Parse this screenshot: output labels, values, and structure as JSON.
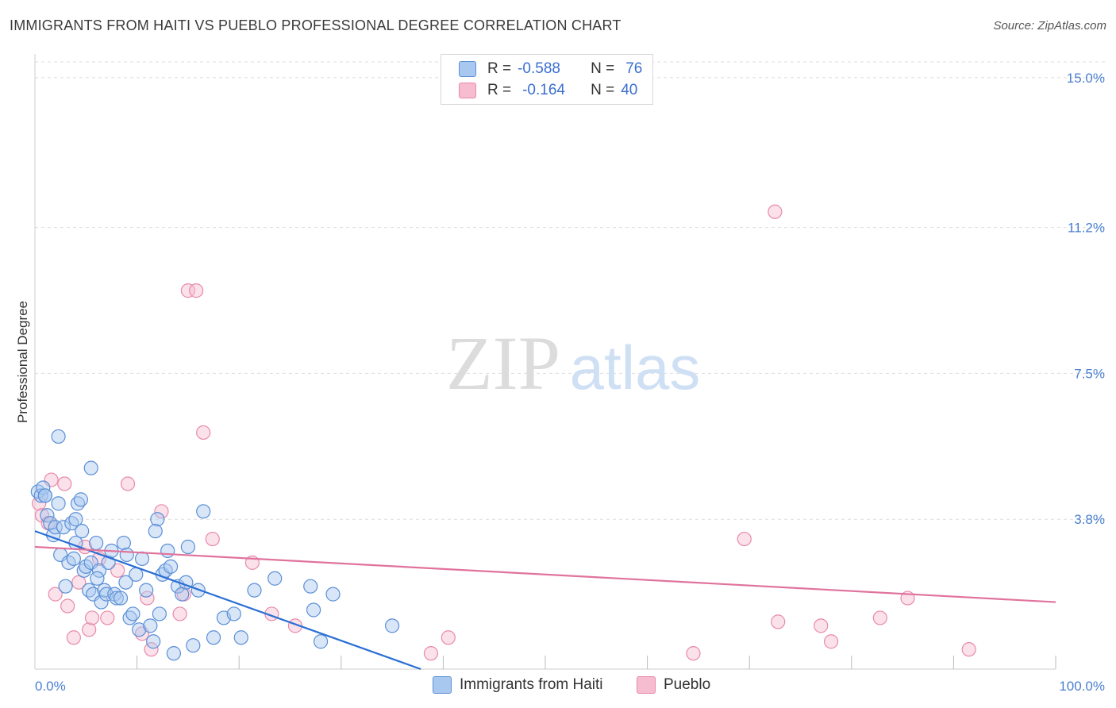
{
  "title": "IMMIGRANTS FROM HAITI VS PUEBLO PROFESSIONAL DEGREE CORRELATION CHART",
  "source": "Source: ZipAtlas.com",
  "watermark": {
    "zip": "ZIP",
    "atlas": "atlas"
  },
  "colors": {
    "blue_fill": "#a9c8f0",
    "blue_stroke": "#5b8fd6",
    "blue_line": "#2a6fd4",
    "pink_fill": "#f6bcd0",
    "pink_stroke": "#e88aaa",
    "pink_line": "#e0739c",
    "axis_text": "#4a7fd0",
    "grid": "#dddddd"
  },
  "legend": {
    "rows": [
      {
        "r_label": "R =",
        "r_value": "-0.588",
        "n_label": "N =",
        "n_value": "76"
      },
      {
        "r_label": "R =",
        "r_value": "-0.164",
        "n_label": "N =",
        "n_value": "40"
      }
    ]
  },
  "chart_data": {
    "type": "scatter",
    "title": "IMMIGRANTS FROM HAITI VS PUEBLO PROFESSIONAL DEGREE CORRELATION CHART",
    "xlabel": "",
    "ylabel": "Professional Degree",
    "xlim": [
      0,
      100
    ],
    "ylim": [
      0,
      15.4
    ],
    "x_tick_labels": [
      "0.0%",
      "100.0%"
    ],
    "y_ticks": [
      3.8,
      7.5,
      11.2,
      15.0
    ],
    "y_tick_labels": [
      "3.8%",
      "7.5%",
      "11.2%",
      "15.0%"
    ],
    "grid": true,
    "series": [
      {
        "name": "Immigrants from Haiti",
        "color": "blue",
        "trend": {
          "x0": 0,
          "y0": 3.5,
          "x1": 37.8,
          "y1": 0
        },
        "points": [
          [
            0.3,
            4.5
          ],
          [
            0.6,
            4.4
          ],
          [
            0.8,
            4.6
          ],
          [
            1.0,
            4.4
          ],
          [
            1.2,
            3.9
          ],
          [
            1.5,
            3.7
          ],
          [
            1.8,
            3.4
          ],
          [
            2.0,
            3.6
          ],
          [
            2.3,
            4.2
          ],
          [
            2.5,
            2.9
          ],
          [
            2.8,
            3.6
          ],
          [
            3.0,
            2.1
          ],
          [
            3.3,
            2.7
          ],
          [
            3.6,
            3.7
          ],
          [
            4.0,
            3.2
          ],
          [
            4.2,
            4.2
          ],
          [
            4.5,
            4.3
          ],
          [
            4.6,
            3.5
          ],
          [
            4.8,
            2.5
          ],
          [
            5.0,
            2.6
          ],
          [
            5.3,
            2.0
          ],
          [
            5.5,
            2.7
          ],
          [
            5.7,
            1.9
          ],
          [
            6.0,
            3.2
          ],
          [
            6.3,
            2.5
          ],
          [
            6.5,
            1.7
          ],
          [
            6.8,
            2.0
          ],
          [
            7.0,
            1.9
          ],
          [
            7.2,
            2.7
          ],
          [
            7.5,
            3.0
          ],
          [
            7.8,
            1.9
          ],
          [
            8.0,
            1.8
          ],
          [
            8.4,
            1.8
          ],
          [
            8.7,
            3.2
          ],
          [
            9.0,
            2.9
          ],
          [
            9.3,
            1.3
          ],
          [
            9.6,
            1.4
          ],
          [
            9.9,
            2.4
          ],
          [
            10.2,
            1.0
          ],
          [
            10.5,
            2.8
          ],
          [
            10.9,
            2.0
          ],
          [
            11.3,
            1.1
          ],
          [
            11.6,
            0.7
          ],
          [
            12.0,
            3.8
          ],
          [
            12.2,
            1.4
          ],
          [
            12.5,
            2.4
          ],
          [
            12.8,
            2.5
          ],
          [
            13.0,
            3.0
          ],
          [
            13.3,
            2.6
          ],
          [
            13.6,
            0.4
          ],
          [
            14.0,
            2.1
          ],
          [
            14.4,
            1.9
          ],
          [
            15.0,
            3.1
          ],
          [
            15.5,
            0.6
          ],
          [
            16.0,
            2.0
          ],
          [
            16.5,
            4.0
          ],
          [
            17.5,
            0.8
          ],
          [
            18.5,
            1.3
          ],
          [
            19.5,
            1.4
          ],
          [
            20.2,
            0.8
          ],
          [
            21.5,
            2.0
          ],
          [
            23.5,
            2.3
          ],
          [
            27.0,
            2.1
          ],
          [
            27.3,
            1.5
          ],
          [
            28.0,
            0.7
          ],
          [
            29.2,
            1.9
          ],
          [
            35.0,
            1.1
          ],
          [
            2.3,
            5.9
          ],
          [
            5.5,
            5.1
          ],
          [
            1.0,
            4.4
          ],
          [
            3.8,
            2.8
          ],
          [
            6.1,
            2.3
          ],
          [
            8.9,
            2.2
          ],
          [
            11.8,
            3.5
          ],
          [
            14.8,
            2.2
          ],
          [
            4.0,
            3.8
          ]
        ]
      },
      {
        "name": "Pueblo",
        "color": "pink",
        "trend": {
          "x0": 0,
          "y0": 3.1,
          "x1": 100,
          "y1": 1.7
        },
        "points": [
          [
            0.4,
            4.2
          ],
          [
            0.7,
            3.9
          ],
          [
            1.3,
            3.7
          ],
          [
            1.6,
            4.8
          ],
          [
            2.0,
            1.9
          ],
          [
            2.9,
            4.7
          ],
          [
            3.2,
            1.6
          ],
          [
            3.8,
            0.8
          ],
          [
            4.3,
            2.2
          ],
          [
            4.9,
            3.1
          ],
          [
            5.3,
            1.0
          ],
          [
            5.6,
            1.3
          ],
          [
            6.3,
            2.8
          ],
          [
            7.1,
            1.3
          ],
          [
            8.1,
            2.5
          ],
          [
            9.1,
            4.7
          ],
          [
            10.5,
            0.9
          ],
          [
            11.0,
            1.8
          ],
          [
            11.4,
            0.5
          ],
          [
            12.4,
            4.0
          ],
          [
            14.2,
            1.4
          ],
          [
            14.6,
            1.9
          ],
          [
            15.0,
            9.6
          ],
          [
            15.8,
            9.6
          ],
          [
            16.5,
            6.0
          ],
          [
            17.4,
            3.3
          ],
          [
            21.3,
            2.7
          ],
          [
            23.2,
            1.4
          ],
          [
            25.5,
            1.1
          ],
          [
            38.8,
            0.4
          ],
          [
            40.5,
            0.8
          ],
          [
            64.5,
            0.4
          ],
          [
            69.5,
            3.3
          ],
          [
            72.5,
            11.6
          ],
          [
            72.8,
            1.2
          ],
          [
            77.0,
            1.1
          ],
          [
            78.0,
            0.7
          ],
          [
            82.8,
            1.3
          ],
          [
            85.5,
            1.8
          ],
          [
            91.5,
            0.5
          ]
        ]
      }
    ]
  },
  "bottom_legend": {
    "items": [
      "Immigrants from Haiti",
      "Pueblo"
    ]
  }
}
